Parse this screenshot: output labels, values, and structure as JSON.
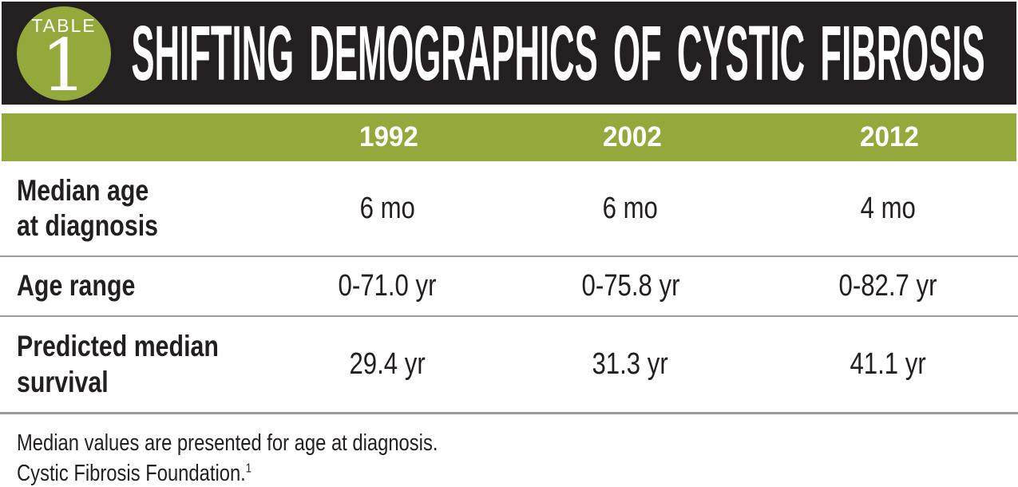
{
  "badge": {
    "label": "TABLE",
    "number": "1"
  },
  "title": "SHIFTING DEMOGRAPHICS OF CYSTIC FIBROSIS",
  "colors": {
    "accent_green": "#94a93b",
    "header_black": "#241f21",
    "text_black": "#231f20",
    "separator_gray": "#9b9b9b"
  },
  "table": {
    "columns": [
      "1992",
      "2002",
      "2012"
    ],
    "rows": [
      {
        "label": "Median age\nat diagnosis",
        "values": [
          "6 mo",
          "6 mo",
          "4 mo"
        ]
      },
      {
        "label": "Age range",
        "values": [
          "0-71.0 yr",
          "0-75.8 yr",
          "0-82.7 yr"
        ]
      },
      {
        "label": "Predicted median\nsurvival",
        "values": [
          "29.4 yr",
          "31.3 yr",
          "41.1 yr"
        ]
      }
    ]
  },
  "footnotes": {
    "line1": "Median values are presented for age at diagnosis.",
    "line2": "Cystic Fibrosis Foundation.",
    "reference_mark": "1"
  }
}
